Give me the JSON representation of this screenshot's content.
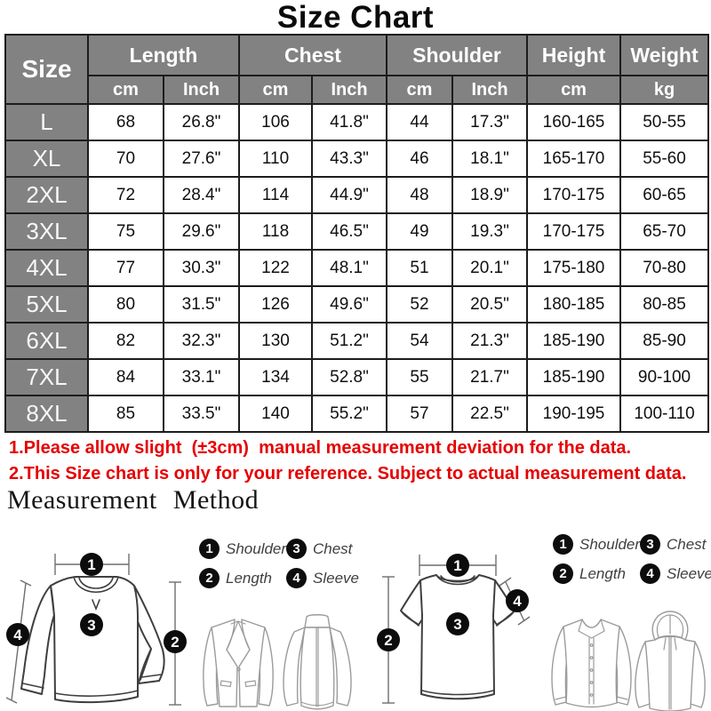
{
  "title": "Size Chart",
  "colors": {
    "header_bg": "#828282",
    "border": "#1c1c1c",
    "note_red": "#e60000"
  },
  "table": {
    "size_header": "Size",
    "groups": [
      {
        "label": "Length"
      },
      {
        "label": "Chest"
      },
      {
        "label": "Shoulder"
      },
      {
        "label": "Height"
      },
      {
        "label": "Weight"
      }
    ],
    "unit_row": [
      "cm",
      "Inch",
      "cm",
      "Inch",
      "cm",
      "Inch",
      "cm",
      "kg"
    ],
    "rows": [
      [
        "L",
        "68",
        "26.8\"",
        "106",
        "41.8\"",
        "44",
        "17.3\"",
        "160-165",
        "50-55"
      ],
      [
        "XL",
        "70",
        "27.6\"",
        "110",
        "43.3\"",
        "46",
        "18.1\"",
        "165-170",
        "55-60"
      ],
      [
        "2XL",
        "72",
        "28.4\"",
        "114",
        "44.9\"",
        "48",
        "18.9\"",
        "170-175",
        "60-65"
      ],
      [
        "3XL",
        "75",
        "29.6\"",
        "118",
        "46.5\"",
        "49",
        "19.3\"",
        "170-175",
        "65-70"
      ],
      [
        "4XL",
        "77",
        "30.3\"",
        "122",
        "48.1\"",
        "51",
        "20.1\"",
        "175-180",
        "70-80"
      ],
      [
        "5XL",
        "80",
        "31.5\"",
        "126",
        "49.6\"",
        "52",
        "20.5\"",
        "180-185",
        "80-85"
      ],
      [
        "6XL",
        "82",
        "32.3\"",
        "130",
        "51.2\"",
        "54",
        "21.3\"",
        "185-190",
        "85-90"
      ],
      [
        "7XL",
        "84",
        "33.1\"",
        "134",
        "52.8\"",
        "55",
        "21.7\"",
        "185-190",
        "90-100"
      ],
      [
        "8XL",
        "85",
        "33.5\"",
        "140",
        "55.2\"",
        "57",
        "22.5\"",
        "190-195",
        "100-110"
      ]
    ]
  },
  "notes": [
    "1.Please allow slight  (±3cm)  manual measurement deviation for the data.",
    "2.This Size chart is only for your reference. Subject to actual measurement data."
  ],
  "section_title": "Measurement Method",
  "legend": {
    "items": [
      {
        "num": "1",
        "label": "Shoulder"
      },
      {
        "num": "3",
        "label": "Chest"
      },
      {
        "num": "2",
        "label": "Length"
      },
      {
        "num": "4",
        "label": "Sleeve"
      }
    ]
  },
  "diagram": {
    "markers": [
      "1",
      "2",
      "3",
      "4"
    ]
  }
}
